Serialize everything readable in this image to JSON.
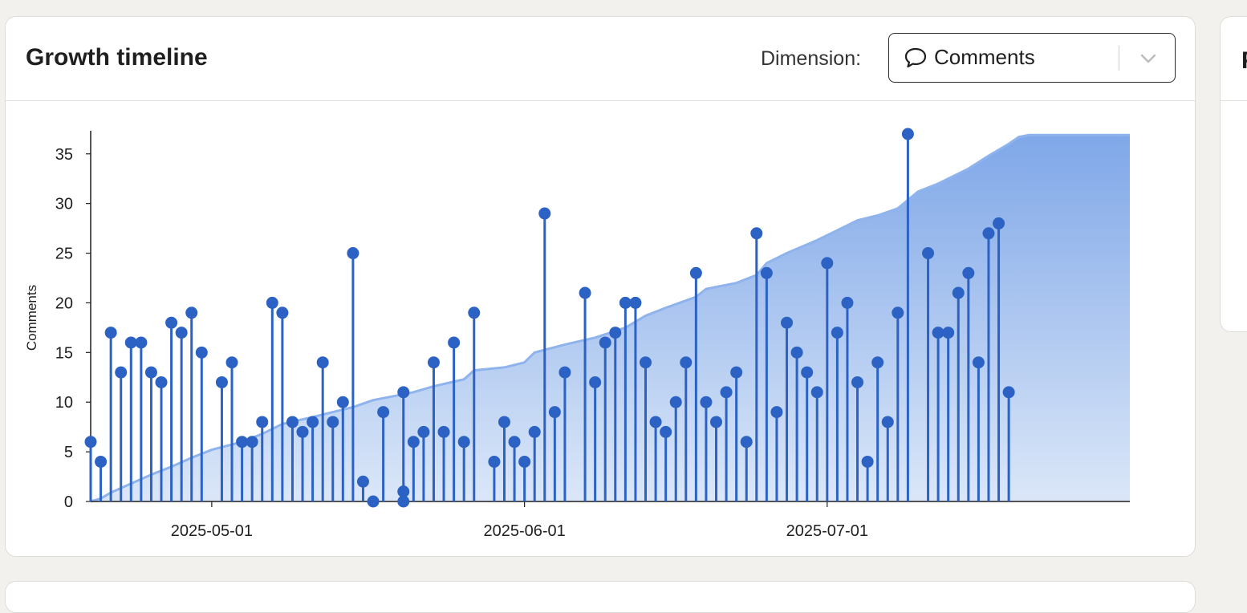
{
  "card": {
    "title": "Growth timeline",
    "dimension_label": "Dimension:",
    "dimension_value": "Comments",
    "dimension_icon": "speech-bubble-icon"
  },
  "side_card": {
    "title_fragment": "P"
  },
  "colors": {
    "stem": "#2b62c4",
    "cumulative_line": "#8fb3ec",
    "area_top": "#7fa7e8",
    "area_bottom": "#dbe7f8"
  },
  "chart_data": {
    "type": "lollipop",
    "ylabel": "Comments",
    "ylim": [
      0,
      37
    ],
    "yticks": [
      0,
      5,
      10,
      15,
      20,
      25,
      30,
      35
    ],
    "xlim": [
      "2025-04-19",
      "2025-07-31"
    ],
    "xticks": [
      "2025-05-01",
      "2025-06-01",
      "2025-07-01"
    ],
    "grid": false,
    "series": [
      {
        "kind": "stems",
        "points": [
          [
            "2025-04-19",
            6
          ],
          [
            "2025-04-20",
            4
          ],
          [
            "2025-04-21",
            17
          ],
          [
            "2025-04-22",
            13
          ],
          [
            "2025-04-23",
            16
          ],
          [
            "2025-04-24",
            16
          ],
          [
            "2025-04-25",
            13
          ],
          [
            "2025-04-26",
            12
          ],
          [
            "2025-04-27",
            18
          ],
          [
            "2025-04-28",
            17
          ],
          [
            "2025-04-29",
            19
          ],
          [
            "2025-04-30",
            15
          ],
          [
            "2025-05-02",
            12
          ],
          [
            "2025-05-03",
            14
          ],
          [
            "2025-05-04",
            6
          ],
          [
            "2025-05-05",
            6
          ],
          [
            "2025-05-06",
            8
          ],
          [
            "2025-05-07",
            20
          ],
          [
            "2025-05-08",
            19
          ],
          [
            "2025-05-09",
            8
          ],
          [
            "2025-05-10",
            7
          ],
          [
            "2025-05-11",
            8
          ],
          [
            "2025-05-12",
            14
          ],
          [
            "2025-05-13",
            8
          ],
          [
            "2025-05-14",
            10
          ],
          [
            "2025-05-15",
            25
          ],
          [
            "2025-05-16",
            2
          ],
          [
            "2025-05-17",
            0
          ],
          [
            "2025-05-18",
            9
          ],
          [
            "2025-05-20",
            11
          ],
          [
            "2025-05-20",
            1
          ],
          [
            "2025-05-20",
            0
          ],
          [
            "2025-05-21",
            6
          ],
          [
            "2025-05-22",
            7
          ],
          [
            "2025-05-23",
            14
          ],
          [
            "2025-05-24",
            7
          ],
          [
            "2025-05-25",
            16
          ],
          [
            "2025-05-26",
            6
          ],
          [
            "2025-05-27",
            19
          ],
          [
            "2025-05-29",
            4
          ],
          [
            "2025-05-30",
            8
          ],
          [
            "2025-05-31",
            6
          ],
          [
            "2025-06-01",
            4
          ],
          [
            "2025-06-02",
            7
          ],
          [
            "2025-06-03",
            29
          ],
          [
            "2025-06-04",
            9
          ],
          [
            "2025-06-05",
            13
          ],
          [
            "2025-06-07",
            21
          ],
          [
            "2025-06-08",
            12
          ],
          [
            "2025-06-09",
            16
          ],
          [
            "2025-06-10",
            17
          ],
          [
            "2025-06-11",
            20
          ],
          [
            "2025-06-12",
            20
          ],
          [
            "2025-06-13",
            14
          ],
          [
            "2025-06-14",
            8
          ],
          [
            "2025-06-15",
            7
          ],
          [
            "2025-06-16",
            10
          ],
          [
            "2025-06-17",
            14
          ],
          [
            "2025-06-18",
            23
          ],
          [
            "2025-06-19",
            10
          ],
          [
            "2025-06-20",
            8
          ],
          [
            "2025-06-21",
            11
          ],
          [
            "2025-06-22",
            13
          ],
          [
            "2025-06-23",
            6
          ],
          [
            "2025-06-24",
            27
          ],
          [
            "2025-06-25",
            23
          ],
          [
            "2025-06-26",
            9
          ],
          [
            "2025-06-27",
            18
          ],
          [
            "2025-06-28",
            15
          ],
          [
            "2025-06-29",
            13
          ],
          [
            "2025-06-30",
            11
          ],
          [
            "2025-07-01",
            24
          ],
          [
            "2025-07-02",
            17
          ],
          [
            "2025-07-03",
            20
          ],
          [
            "2025-07-04",
            12
          ],
          [
            "2025-07-05",
            4
          ],
          [
            "2025-07-06",
            14
          ],
          [
            "2025-07-07",
            8
          ],
          [
            "2025-07-08",
            19
          ],
          [
            "2025-07-09",
            37
          ],
          [
            "2025-07-11",
            25
          ],
          [
            "2025-07-12",
            17
          ],
          [
            "2025-07-13",
            17
          ],
          [
            "2025-07-14",
            21
          ],
          [
            "2025-07-15",
            23
          ],
          [
            "2025-07-16",
            14
          ],
          [
            "2025-07-17",
            27
          ],
          [
            "2025-07-18",
            28
          ],
          [
            "2025-07-19",
            11
          ]
        ]
      },
      {
        "kind": "cumulative-area",
        "points": [
          [
            "2025-04-19",
            0
          ],
          [
            "2025-04-20",
            0.3
          ],
          [
            "2025-04-21",
            0.9
          ],
          [
            "2025-04-23",
            1.8
          ],
          [
            "2025-04-25",
            2.7
          ],
          [
            "2025-04-27",
            3.5
          ],
          [
            "2025-04-29",
            4.4
          ],
          [
            "2025-05-01",
            5.2
          ],
          [
            "2025-05-04",
            6.0
          ],
          [
            "2025-05-06",
            6.8
          ],
          [
            "2025-05-08",
            7.8
          ],
          [
            "2025-05-11",
            8.5
          ],
          [
            "2025-05-13",
            9.0
          ],
          [
            "2025-05-15",
            9.5
          ],
          [
            "2025-05-17",
            10.2
          ],
          [
            "2025-05-19",
            10.6
          ],
          [
            "2025-05-21",
            11.0
          ],
          [
            "2025-05-23",
            11.6
          ],
          [
            "2025-05-26",
            12.3
          ],
          [
            "2025-05-27",
            13.2
          ],
          [
            "2025-05-30",
            13.5
          ],
          [
            "2025-06-01",
            14.0
          ],
          [
            "2025-06-02",
            15.0
          ],
          [
            "2025-06-05",
            15.8
          ],
          [
            "2025-06-08",
            16.5
          ],
          [
            "2025-06-11",
            17.5
          ],
          [
            "2025-06-13",
            18.7
          ],
          [
            "2025-06-15",
            19.5
          ],
          [
            "2025-06-18",
            20.6
          ],
          [
            "2025-06-19",
            21.4
          ],
          [
            "2025-06-22",
            22.0
          ],
          [
            "2025-06-24",
            22.8
          ],
          [
            "2025-06-25",
            24.0
          ],
          [
            "2025-06-27",
            25.0
          ],
          [
            "2025-06-30",
            26.3
          ],
          [
            "2025-07-02",
            27.3
          ],
          [
            "2025-07-04",
            28.3
          ],
          [
            "2025-07-06",
            28.8
          ],
          [
            "2025-07-08",
            29.5
          ],
          [
            "2025-07-10",
            31.2
          ],
          [
            "2025-07-12",
            32.0
          ],
          [
            "2025-07-15",
            33.5
          ],
          [
            "2025-07-17",
            34.8
          ],
          [
            "2025-07-19",
            36.0
          ],
          [
            "2025-07-20",
            36.7
          ],
          [
            "2025-07-21",
            36.9
          ]
        ]
      }
    ]
  }
}
